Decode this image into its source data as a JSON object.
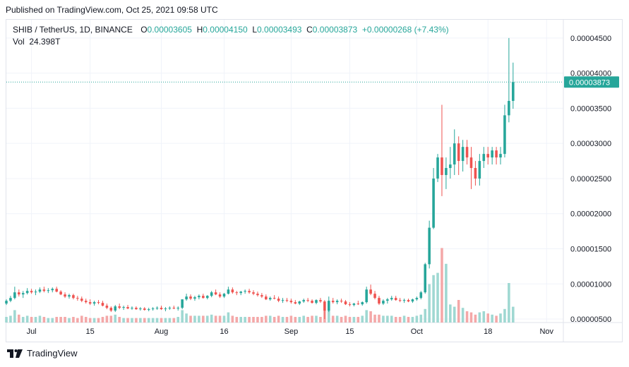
{
  "header": {
    "published": "Published on TradingView.com, Oct 25, 2021 09:58 UTC"
  },
  "legend": {
    "symbol": "SHIB / TetherUS, 1D, BINANCE",
    "o_label": "O",
    "o_value": "0.00003605",
    "h_label": "H",
    "h_value": "0.00004150",
    "l_label": "L",
    "l_value": "0.00003493",
    "c_label": "C",
    "c_value": "0.00003873",
    "change": "+0.00000268 (+7.43%)",
    "vol_label": "Vol",
    "vol_value": "24.398T"
  },
  "footer": {
    "brand": "TradingView"
  },
  "colors": {
    "up": "#26a69a",
    "down": "#ef5350",
    "up_vol": "#9fd8d2",
    "down_vol": "#f4a8a8",
    "price_line": "#26a69a"
  },
  "chart_data": {
    "type": "candlestick",
    "symbol": "SHIB / TetherUS",
    "interval": "1D",
    "exchange": "BINANCE",
    "x_start_date": "2021-06-25",
    "x_ticks": [
      {
        "label": "Jul",
        "index": 6
      },
      {
        "label": "15",
        "index": 20
      },
      {
        "label": "Aug",
        "index": 37
      },
      {
        "label": "16",
        "index": 52
      },
      {
        "label": "Sep",
        "index": 68
      },
      {
        "label": "15",
        "index": 82
      },
      {
        "label": "Oct",
        "index": 98
      },
      {
        "label": "18",
        "index": 115
      },
      {
        "label": "Nov",
        "index": 129
      }
    ],
    "x_range": [
      0,
      133
    ],
    "y_ticks": [
      "0.00004500",
      "0.00004000",
      "0.00003500",
      "0.00003000",
      "0.00002500",
      "0.00002000",
      "0.00001500",
      "0.00001000",
      "0.00000500"
    ],
    "ylim": [
      4.5e-06,
      4.76e-05
    ],
    "last_price": "0.00003873",
    "last_price_value": 3.873e-05,
    "candles_ohlc_e_minus_8": [
      [
        720,
        780,
        700,
        760
      ],
      [
        760,
        830,
        740,
        800
      ],
      [
        800,
        960,
        780,
        880
      ],
      [
        880,
        920,
        820,
        850
      ],
      [
        850,
        900,
        800,
        870
      ],
      [
        870,
        940,
        850,
        900
      ],
      [
        900,
        930,
        860,
        880
      ],
      [
        880,
        920,
        840,
        890
      ],
      [
        890,
        950,
        870,
        920
      ],
      [
        920,
        960,
        880,
        900
      ],
      [
        900,
        940,
        870,
        910
      ],
      [
        910,
        950,
        880,
        930
      ],
      [
        930,
        960,
        880,
        890
      ],
      [
        890,
        910,
        840,
        850
      ],
      [
        850,
        880,
        800,
        820
      ],
      [
        820,
        860,
        790,
        840
      ],
      [
        840,
        860,
        780,
        800
      ],
      [
        800,
        830,
        760,
        790
      ],
      [
        790,
        820,
        740,
        760
      ],
      [
        760,
        790,
        720,
        740
      ],
      [
        740,
        780,
        700,
        720
      ],
      [
        720,
        760,
        690,
        740
      ],
      [
        740,
        770,
        710,
        730
      ],
      [
        730,
        760,
        680,
        690
      ],
      [
        690,
        720,
        640,
        660
      ],
      [
        660,
        680,
        600,
        620
      ],
      [
        620,
        700,
        600,
        680
      ],
      [
        680,
        720,
        640,
        660
      ],
      [
        660,
        690,
        630,
        670
      ],
      [
        670,
        700,
        640,
        650
      ],
      [
        650,
        680,
        630,
        660
      ],
      [
        660,
        680,
        630,
        640
      ],
      [
        640,
        670,
        620,
        650
      ],
      [
        650,
        670,
        620,
        630
      ],
      [
        630,
        660,
        610,
        640
      ],
      [
        640,
        670,
        620,
        650
      ],
      [
        650,
        680,
        630,
        660
      ],
      [
        660,
        690,
        630,
        640
      ],
      [
        640,
        670,
        610,
        650
      ],
      [
        650,
        680,
        630,
        660
      ],
      [
        660,
        690,
        640,
        650
      ],
      [
        650,
        680,
        620,
        660
      ],
      [
        660,
        780,
        640,
        780
      ],
      [
        780,
        860,
        760,
        820
      ],
      [
        820,
        850,
        770,
        790
      ],
      [
        790,
        830,
        760,
        810
      ],
      [
        810,
        850,
        780,
        830
      ],
      [
        830,
        860,
        790,
        800
      ],
      [
        800,
        840,
        780,
        830
      ],
      [
        830,
        900,
        810,
        880
      ],
      [
        880,
        920,
        840,
        850
      ],
      [
        850,
        880,
        800,
        820
      ],
      [
        820,
        870,
        800,
        860
      ],
      [
        860,
        960,
        850,
        920
      ],
      [
        920,
        950,
        860,
        880
      ],
      [
        880,
        900,
        840,
        870
      ],
      [
        870,
        900,
        840,
        890
      ],
      [
        890,
        920,
        860,
        900
      ],
      [
        900,
        930,
        860,
        880
      ],
      [
        880,
        910,
        840,
        860
      ],
      [
        860,
        890,
        820,
        840
      ],
      [
        840,
        870,
        800,
        820
      ],
      [
        820,
        850,
        770,
        780
      ],
      [
        780,
        820,
        760,
        800
      ],
      [
        800,
        840,
        780,
        790
      ],
      [
        790,
        820,
        740,
        760
      ],
      [
        760,
        800,
        730,
        770
      ],
      [
        770,
        800,
        740,
        760
      ],
      [
        760,
        790,
        720,
        740
      ],
      [
        740,
        770,
        710,
        720
      ],
      [
        720,
        760,
        700,
        750
      ],
      [
        750,
        790,
        730,
        770
      ],
      [
        770,
        800,
        740,
        760
      ],
      [
        760,
        780,
        720,
        730
      ],
      [
        730,
        780,
        710,
        770
      ],
      [
        770,
        800,
        730,
        750
      ],
      [
        750,
        770,
        500,
        620
      ],
      [
        620,
        820,
        600,
        760
      ],
      [
        760,
        800,
        720,
        740
      ],
      [
        740,
        780,
        710,
        760
      ],
      [
        760,
        790,
        730,
        750
      ],
      [
        750,
        770,
        700,
        710
      ],
      [
        710,
        740,
        680,
        700
      ],
      [
        700,
        730,
        680,
        720
      ],
      [
        720,
        760,
        700,
        710
      ],
      [
        710,
        750,
        690,
        740
      ],
      [
        740,
        960,
        720,
        920
      ],
      [
        920,
        990,
        840,
        860
      ],
      [
        860,
        900,
        780,
        800
      ],
      [
        800,
        830,
        700,
        720
      ],
      [
        720,
        780,
        700,
        760
      ],
      [
        760,
        800,
        720,
        780
      ],
      [
        780,
        830,
        760,
        800
      ],
      [
        800,
        830,
        760,
        770
      ],
      [
        770,
        800,
        740,
        760
      ],
      [
        760,
        790,
        730,
        770
      ],
      [
        770,
        790,
        740,
        750
      ],
      [
        750,
        790,
        730,
        780
      ],
      [
        780,
        820,
        760,
        800
      ],
      [
        800,
        900,
        780,
        880
      ],
      [
        880,
        1300,
        860,
        1280
      ],
      [
        1280,
        1900,
        1220,
        1800
      ],
      [
        1800,
        2650,
        1780,
        2500
      ],
      [
        2500,
        2850,
        2450,
        2800
      ],
      [
        2800,
        3550,
        2250,
        2550
      ],
      [
        2550,
        2800,
        2350,
        2650
      ],
      [
        2650,
        2950,
        2500,
        2700
      ],
      [
        2700,
        3200,
        2550,
        3000
      ],
      [
        3000,
        3100,
        2550,
        2750
      ],
      [
        2750,
        3050,
        2600,
        2950
      ],
      [
        2950,
        3050,
        2700,
        2800
      ],
      [
        2800,
        2950,
        2350,
        2650
      ],
      [
        2650,
        2750,
        2400,
        2500
      ],
      [
        2500,
        2850,
        2400,
        2750
      ],
      [
        2750,
        2950,
        2650,
        2850
      ],
      [
        2850,
        2950,
        2700,
        2800
      ],
      [
        2800,
        2950,
        2700,
        2900
      ],
      [
        2900,
        2950,
        2700,
        2800
      ],
      [
        2800,
        2950,
        2700,
        2850
      ],
      [
        2850,
        3550,
        2800,
        3400
      ],
      [
        3400,
        4500,
        3300,
        3605
      ],
      [
        3605,
        4150,
        3493,
        3873
      ]
    ],
    "volume_relative": [
      0.25,
      0.3,
      0.55,
      0.35,
      0.25,
      0.3,
      0.25,
      0.25,
      0.3,
      0.25,
      0.2,
      0.2,
      0.25,
      0.25,
      0.25,
      0.2,
      0.25,
      0.2,
      0.3,
      0.25,
      0.2,
      0.2,
      0.2,
      0.25,
      0.3,
      0.3,
      0.35,
      0.25,
      0.2,
      0.2,
      0.2,
      0.2,
      0.2,
      0.2,
      0.2,
      0.2,
      0.2,
      0.2,
      0.2,
      0.2,
      0.2,
      0.25,
      0.55,
      0.4,
      0.3,
      0.3,
      0.3,
      0.3,
      0.3,
      0.35,
      0.3,
      0.3,
      0.3,
      0.45,
      0.3,
      0.25,
      0.25,
      0.25,
      0.25,
      0.25,
      0.25,
      0.25,
      0.3,
      0.3,
      0.25,
      0.3,
      0.25,
      0.25,
      0.3,
      0.25,
      0.25,
      0.3,
      0.25,
      0.3,
      0.3,
      0.25,
      0.55,
      0.55,
      0.3,
      0.3,
      0.25,
      0.3,
      0.25,
      0.25,
      0.25,
      0.3,
      0.55,
      0.5,
      0.35,
      0.35,
      0.3,
      0.3,
      0.3,
      0.25,
      0.25,
      0.3,
      0.25,
      0.25,
      0.3,
      0.35,
      0.6,
      1.7,
      2.1,
      2.2,
      3.3,
      2.6,
      0.8,
      0.7,
      1.0,
      0.65,
      0.5,
      0.45,
      0.35,
      0.45,
      0.5,
      0.4,
      0.35,
      0.3,
      0.4,
      0.6,
      1.75,
      0.7
    ]
  }
}
